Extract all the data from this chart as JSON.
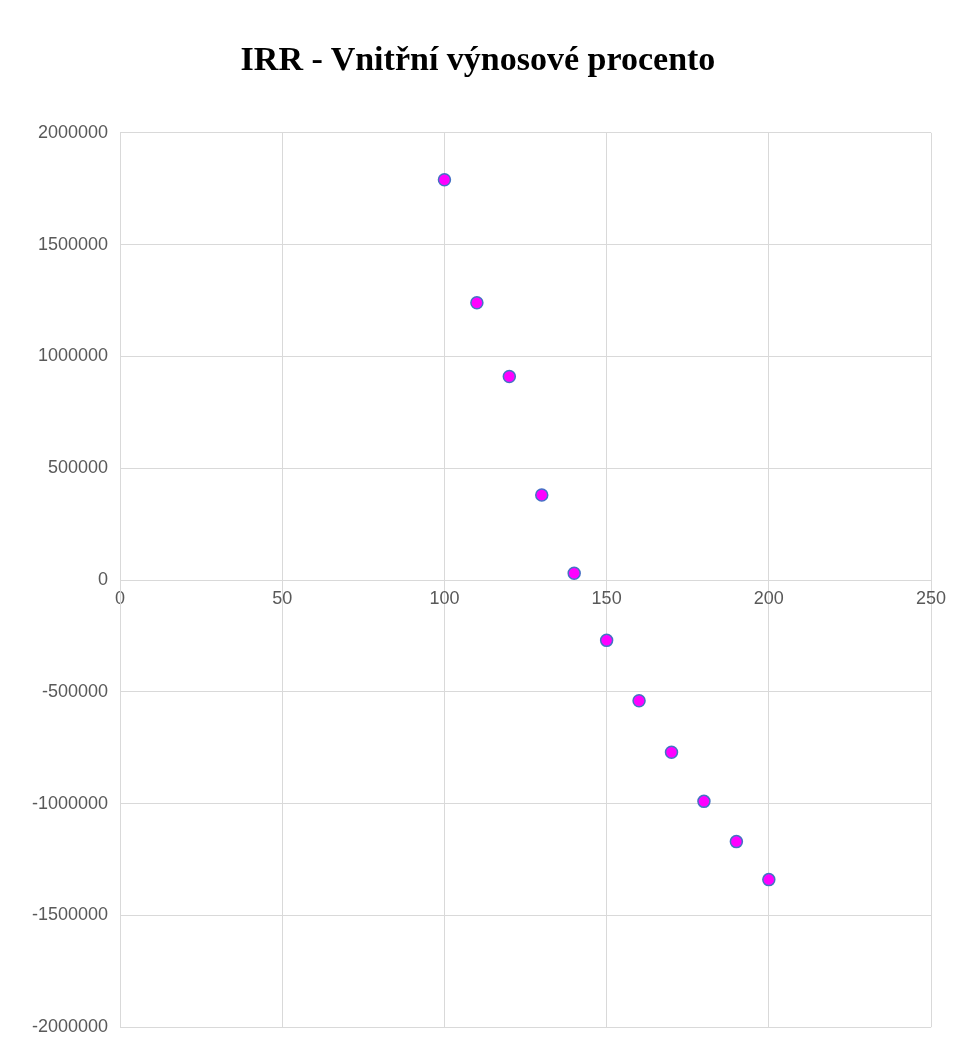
{
  "chart_data": {
    "type": "scatter",
    "title": "IRR - Vnitřní výnosové procento",
    "x": [
      100,
      110,
      120,
      130,
      140,
      150,
      160,
      170,
      180,
      190,
      200
    ],
    "series": [
      {
        "color": "#ff00ff",
        "values": [
          1790000,
          1240000,
          910000,
          380000,
          30000,
          -270000,
          -540000,
          -770000,
          -990000,
          -1170000,
          -1340000
        ]
      }
    ],
    "xlim": [
      0,
      250
    ],
    "xticks": [
      0,
      50,
      100,
      150,
      200,
      250
    ],
    "ylim": [
      -2000000,
      2000000
    ],
    "yticks": [
      -2000000,
      -1500000,
      -1000000,
      -500000,
      0,
      500000,
      1000000,
      1500000,
      2000000
    ],
    "grid": true,
    "legend": false,
    "marker": "circle"
  }
}
